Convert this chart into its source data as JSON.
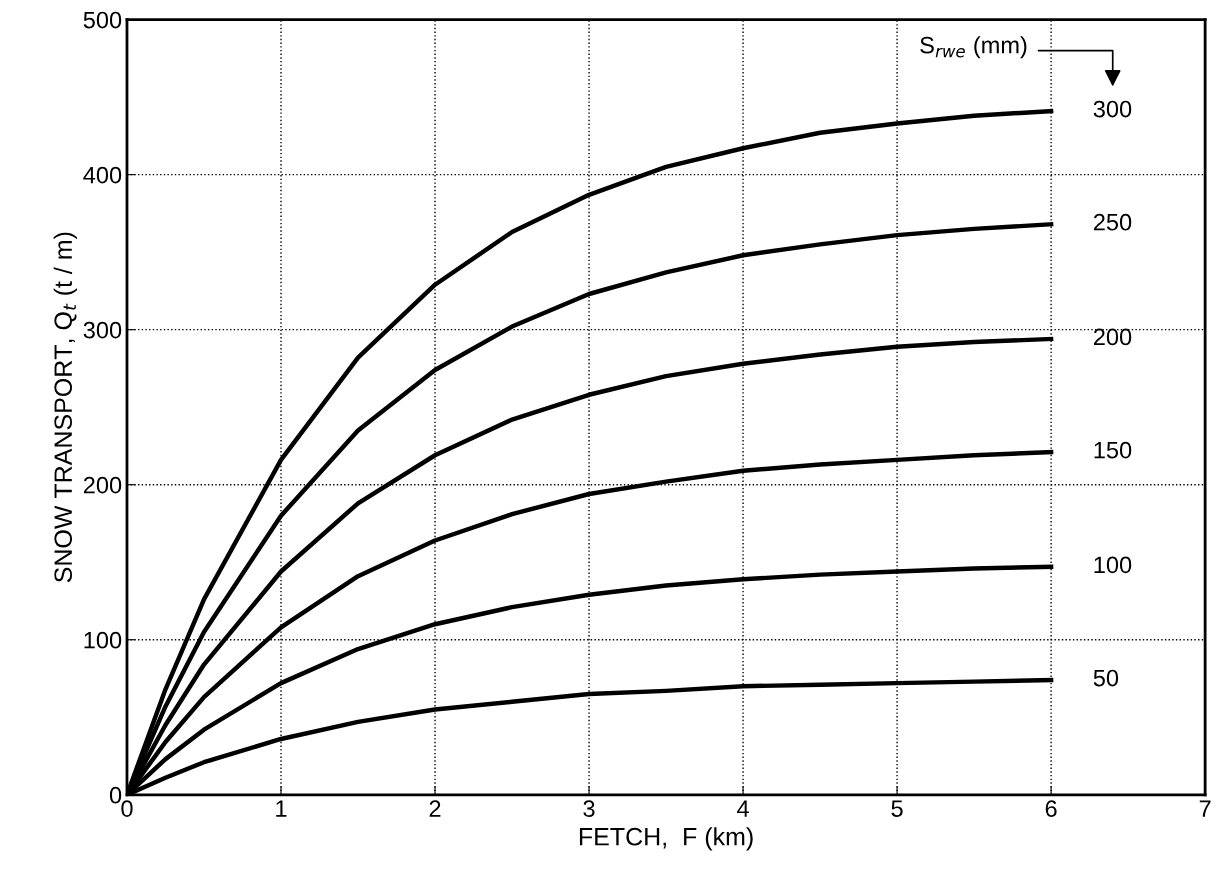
{
  "chart_data": {
    "type": "line",
    "xlabel": "FETCH,  F (km)",
    "ylabel": "SNOW TRANSPORT, Q$_{t}$ (t / m)",
    "x": [
      0,
      0.25,
      0.5,
      1,
      1.5,
      2,
      2.5,
      3,
      3.5,
      4,
      4.5,
      5,
      5.5,
      6
    ],
    "series": [
      {
        "name": "300",
        "color": "#000000",
        "values": [
          0,
          68,
          126,
          216,
          282,
          329,
          363,
          387,
          405,
          417,
          427,
          433,
          438,
          441
        ]
      },
      {
        "name": "250",
        "color": "#000000",
        "values": [
          0,
          57,
          105,
          180,
          235,
          274,
          302,
          323,
          337,
          348,
          355,
          361,
          365,
          368
        ]
      },
      {
        "name": "200",
        "color": "#000000",
        "values": [
          0,
          45,
          84,
          144,
          188,
          219,
          242,
          258,
          270,
          278,
          284,
          289,
          292,
          294
        ]
      },
      {
        "name": "150",
        "color": "#000000",
        "values": [
          0,
          34,
          63,
          108,
          141,
          164,
          181,
          194,
          202,
          209,
          213,
          216,
          219,
          221
        ]
      },
      {
        "name": "100",
        "color": "#000000",
        "values": [
          0,
          23,
          42,
          72,
          94,
          110,
          121,
          129,
          135,
          139,
          142,
          144,
          146,
          147
        ]
      },
      {
        "name": "50",
        "color": "#000000",
        "values": [
          0,
          11,
          21,
          36,
          47,
          55,
          60,
          65,
          67,
          70,
          71,
          72,
          73,
          74
        ]
      }
    ],
    "annotations": [
      "S$_{rwe}$ (mm)"
    ],
    "xlim": [
      0,
      7
    ],
    "xticks": [
      0,
      1,
      2,
      3,
      4,
      5,
      6,
      7
    ],
    "ylim": [
      0,
      500
    ],
    "yticks": [
      0,
      100,
      200,
      300,
      400,
      500
    ],
    "grid": true,
    "marker": "none",
    "line_style": "solid"
  }
}
